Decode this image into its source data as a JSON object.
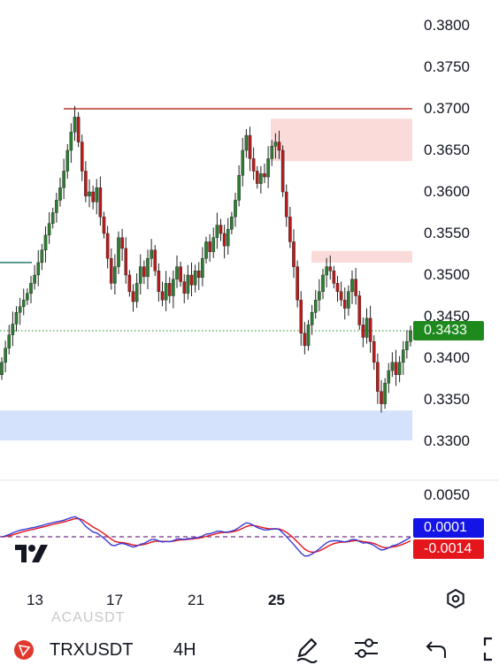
{
  "price_axis": {
    "labels": [
      "0.3800",
      "0.3750",
      "0.3700",
      "0.3650",
      "0.3600",
      "0.3550",
      "0.3500",
      "0.3450",
      "0.3400",
      "0.3350",
      "0.3300"
    ]
  },
  "current_price": {
    "label": "0.3433",
    "value": 0.3433,
    "color": "#1e8a1e"
  },
  "indicator": {
    "axis_label": "0.0050",
    "macd_tag": "0.0001",
    "macd_color": "#1414e6",
    "signal_tag": "-0.0014",
    "signal_color": "#e5151c"
  },
  "time_axis": {
    "labels": [
      "13",
      "17",
      "21",
      "25"
    ],
    "bold_index": 3
  },
  "zones": {
    "resistance_line": 0.37,
    "supply_zone_upper": [
      0.3688,
      0.3637
    ],
    "supply_zone_lower": [
      0.3529,
      0.3515
    ],
    "demand_zone": [
      0.3337,
      0.3301
    ],
    "left_line": 0.3515
  },
  "chart_data": {
    "type": "candlestick",
    "symbol": "TRXUSDT",
    "interval": "4H",
    "ylim": [
      0.3275,
      0.3825
    ],
    "x": [
      "13",
      "17",
      "21",
      "25"
    ],
    "closes": [
      0.3395,
      0.3412,
      0.3428,
      0.3441,
      0.3455,
      0.3462,
      0.347,
      0.3478,
      0.349,
      0.35,
      0.3515,
      0.353,
      0.3548,
      0.3562,
      0.3575,
      0.359,
      0.3605,
      0.3625,
      0.365,
      0.3672,
      0.369,
      0.366,
      0.3625,
      0.3595,
      0.36,
      0.3588,
      0.3605,
      0.357,
      0.355,
      0.352,
      0.349,
      0.351,
      0.3545,
      0.3532,
      0.35,
      0.348,
      0.3468,
      0.349,
      0.351,
      0.3498,
      0.352,
      0.353,
      0.3505,
      0.348,
      0.347,
      0.349,
      0.3475,
      0.3495,
      0.351,
      0.3492,
      0.3478,
      0.35,
      0.3488,
      0.3505,
      0.3497,
      0.352,
      0.354,
      0.3528,
      0.3545,
      0.356,
      0.355,
      0.3535,
      0.3555,
      0.357,
      0.359,
      0.362,
      0.365,
      0.3668,
      0.364,
      0.3625,
      0.361,
      0.3622,
      0.3618,
      0.364,
      0.3655,
      0.366,
      0.365,
      0.36,
      0.357,
      0.354,
      0.351,
      0.347,
      0.343,
      0.3415,
      0.344,
      0.3455,
      0.347,
      0.348,
      0.35,
      0.351,
      0.3505,
      0.349,
      0.348,
      0.347,
      0.346,
      0.348,
      0.3495,
      0.3475,
      0.344,
      0.3425,
      0.3448,
      0.342,
      0.3395,
      0.336,
      0.3345,
      0.337,
      0.3385,
      0.3395,
      0.338,
      0.3395,
      0.341,
      0.342,
      0.3433
    ]
  }
}
